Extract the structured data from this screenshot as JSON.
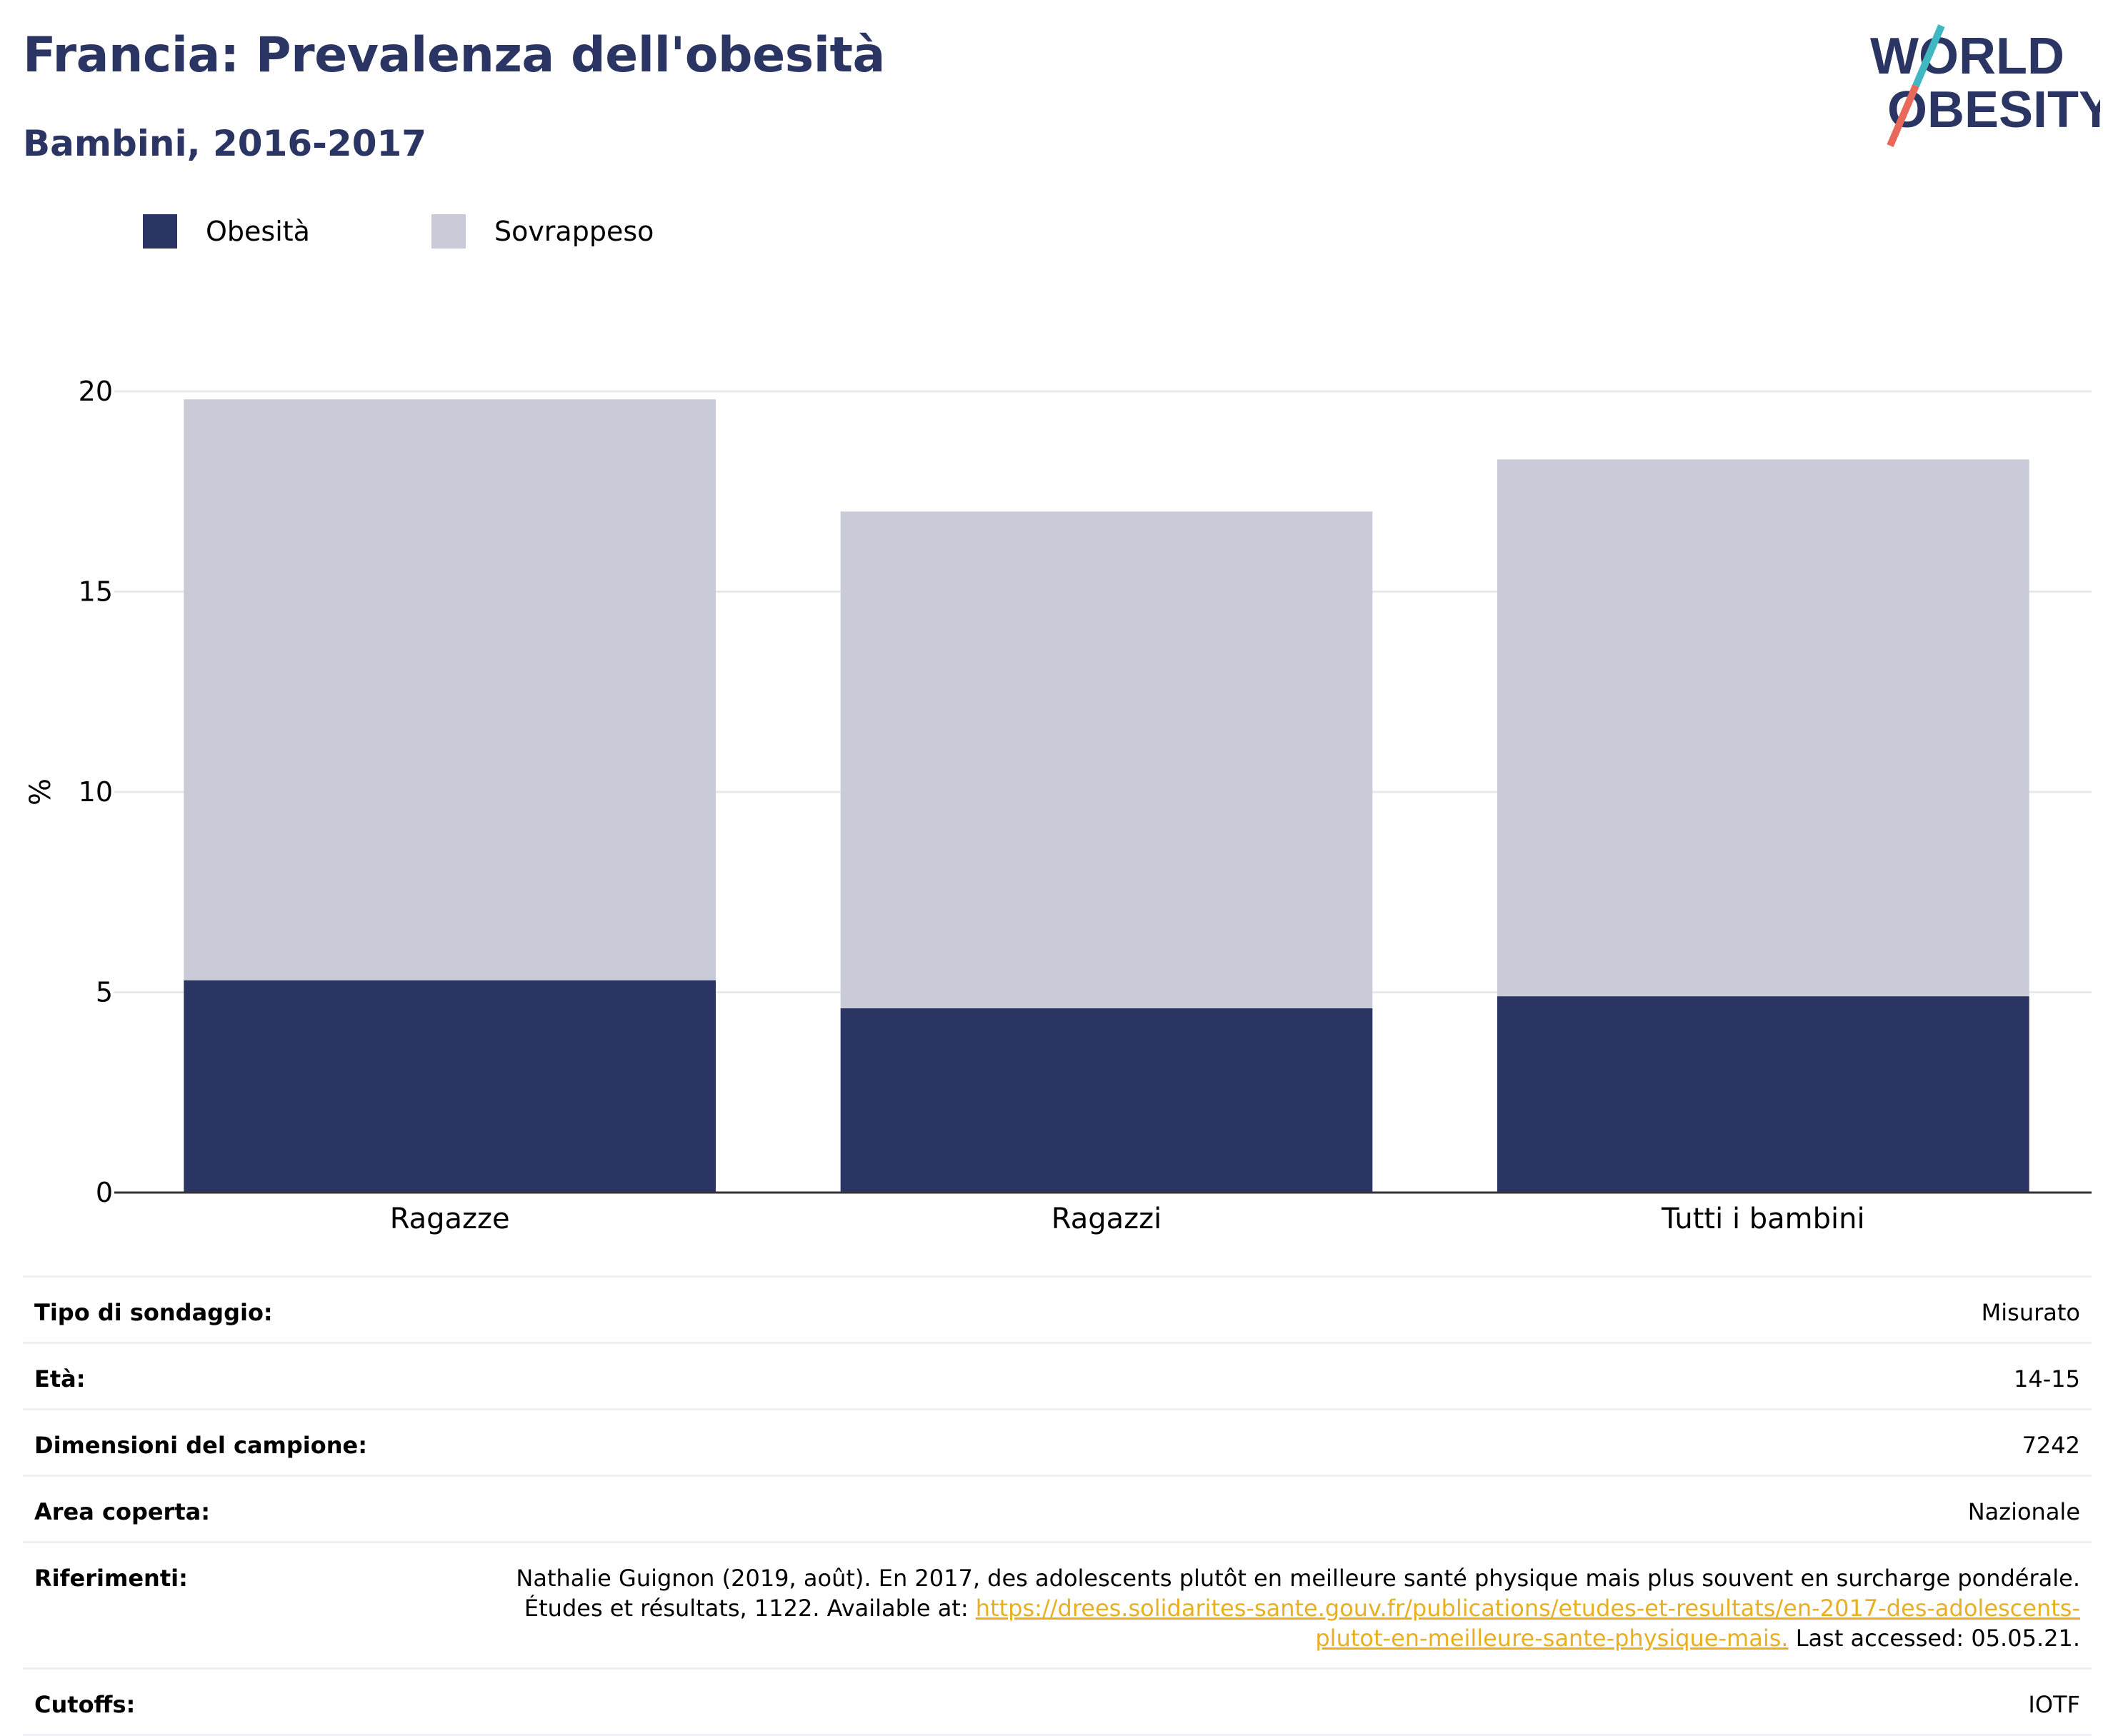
{
  "header": {
    "title": "Francia: Prevalenza dell'obesità",
    "subtitle": "Bambini, 2016-2017"
  },
  "logo": {
    "line1": "WORLD",
    "line2": "OBESITY",
    "colors": {
      "text": "#2a3563",
      "slash_top": "#3fb8c2",
      "slash_bottom": "#e8685a"
    }
  },
  "legend": {
    "items": [
      {
        "label": "Obesità",
        "color": "#2a3563"
      },
      {
        "label": "Sovrappeso",
        "color": "#c9ccd8"
      }
    ]
  },
  "chart_data": {
    "type": "bar",
    "stacked": true,
    "categories": [
      "Ragazze",
      "Ragazzi",
      "Tutti i bambini"
    ],
    "series": [
      {
        "name": "Obesità",
        "values": [
          5.3,
          4.6,
          4.9
        ],
        "color": "#2a3563"
      },
      {
        "name": "Sovrappeso",
        "values": [
          14.5,
          12.4,
          13.4
        ],
        "color": "#c9ccd8"
      }
    ],
    "ylabel": "%",
    "ylim": [
      0,
      20
    ],
    "yticks": [
      0,
      5,
      10,
      15,
      20
    ],
    "grid": true
  },
  "info": {
    "survey_type": {
      "label": "Tipo di sondaggio:",
      "value": "Misurato"
    },
    "age": {
      "label": "Età:",
      "value": "14-15"
    },
    "sample_size": {
      "label": "Dimensioni del campione:",
      "value": "7242"
    },
    "area": {
      "label": "Area coperta:",
      "value": "Nazionale"
    },
    "references": {
      "label": "Riferimenti:",
      "text_before": "Nathalie Guignon (2019, août). En 2017, des adolescents plutôt en meilleure santé physique mais plus souvent en surcharge pondérale. Études et résultats, 1122. Available at: ",
      "link": "https://drees.solidarites-sante.gouv.fr/publications/etudes-et-resultats/en-2017-des-adolescents-plutot-en-meilleure-sante-physique-mais.",
      "text_after": " Last accessed: 05.05.21."
    },
    "cutoffs": {
      "label": "Cutoffs:",
      "value": "IOTF"
    }
  }
}
